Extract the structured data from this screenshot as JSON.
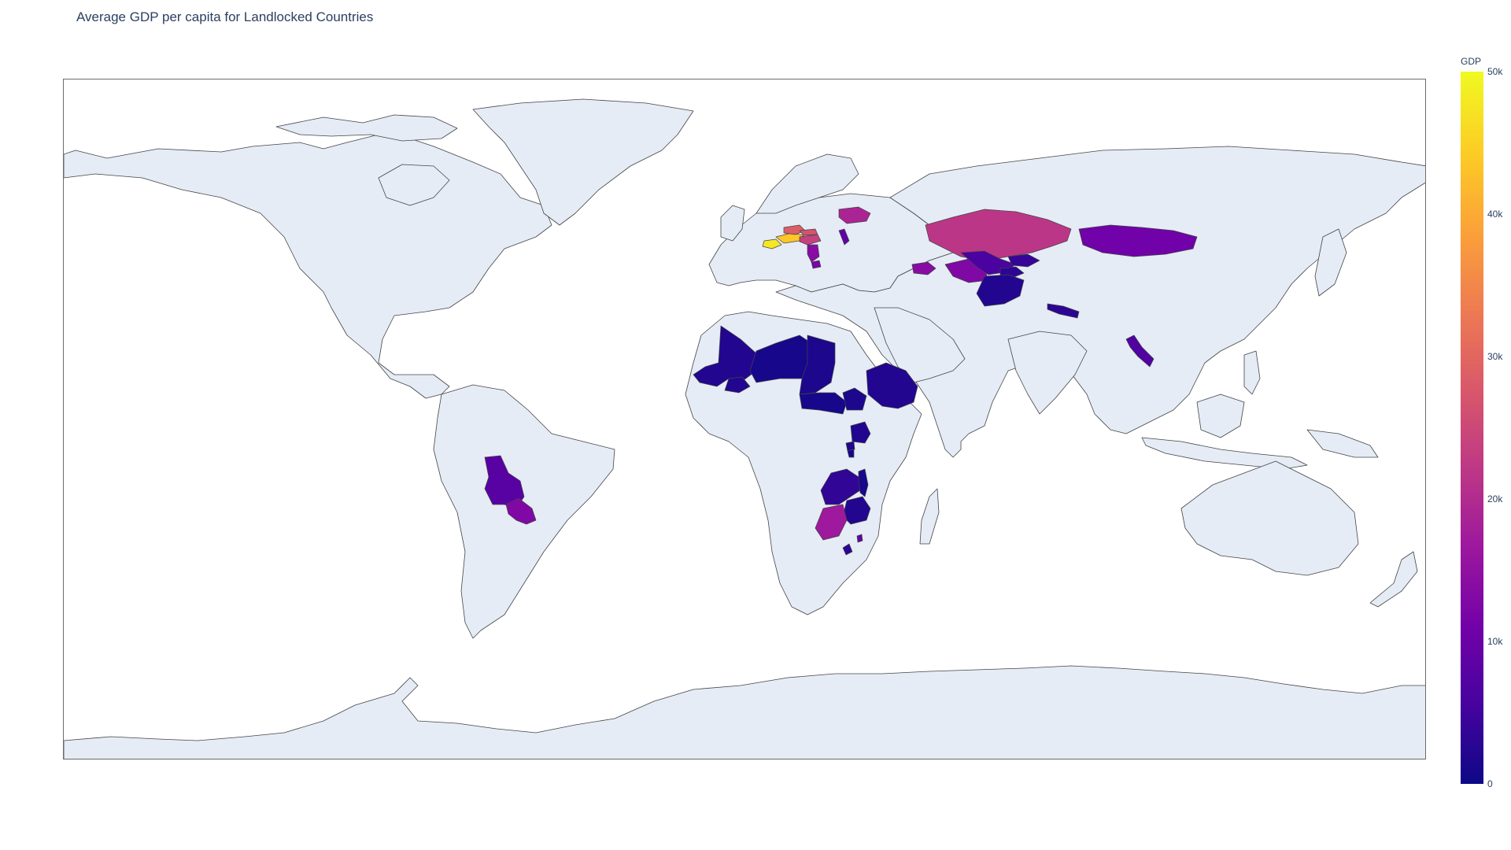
{
  "chart_data": {
    "type": "choropleth",
    "title": "Average GDP per capita for Landlocked Countries",
    "projection": "equirectangular",
    "colorbar": {
      "title": "GDP",
      "range": [
        0,
        50000
      ],
      "ticks": [
        {
          "value": 0,
          "label": "0"
        },
        {
          "value": 10000,
          "label": "10k"
        },
        {
          "value": 20000,
          "label": "20k"
        },
        {
          "value": 30000,
          "label": "30k"
        },
        {
          "value": 40000,
          "label": "40k"
        },
        {
          "value": 50000,
          "label": "50k"
        }
      ],
      "colorscale": [
        "#0d0887",
        "#46039f",
        "#7201a8",
        "#9c179e",
        "#bd3786",
        "#d8576b",
        "#ed7953",
        "#fb9f3a",
        "#fdca26",
        "#f0f921"
      ]
    },
    "countries": [
      {
        "name": "Bolivia",
        "gdp": 8000
      },
      {
        "name": "Paraguay",
        "gdp": 13000
      },
      {
        "name": "Mali",
        "gdp": 2000
      },
      {
        "name": "Burkina Faso",
        "gdp": 2000
      },
      {
        "name": "Niger",
        "gdp": 1000
      },
      {
        "name": "Chad",
        "gdp": 1500
      },
      {
        "name": "Central African Republic",
        "gdp": 1000
      },
      {
        "name": "Ethiopia",
        "gdp": 2000
      },
      {
        "name": "South Sudan",
        "gdp": 1500
      },
      {
        "name": "Uganda",
        "gdp": 2000
      },
      {
        "name": "Rwanda",
        "gdp": 2000
      },
      {
        "name": "Burundi",
        "gdp": 800
      },
      {
        "name": "Zambia",
        "gdp": 3500
      },
      {
        "name": "Malawi",
        "gdp": 1200
      },
      {
        "name": "Zimbabwe",
        "gdp": 2000
      },
      {
        "name": "Botswana",
        "gdp": 17000
      },
      {
        "name": "Lesotho",
        "gdp": 3000
      },
      {
        "name": "Eswatini",
        "gdp": 9000
      },
      {
        "name": "Switzerland",
        "gdp": 48000
      },
      {
        "name": "Austria",
        "gdp": 44000
      },
      {
        "name": "Czechia",
        "gdp": 29000
      },
      {
        "name": "Slovakia",
        "gdp": 27000
      },
      {
        "name": "Hungary",
        "gdp": 24000
      },
      {
        "name": "Serbia",
        "gdp": 14000
      },
      {
        "name": "North Macedonia",
        "gdp": 12000
      },
      {
        "name": "Moldova",
        "gdp": 9000
      },
      {
        "name": "Belarus",
        "gdp": 19000
      },
      {
        "name": "Armenia",
        "gdp": 11000
      },
      {
        "name": "Azerbaijan",
        "gdp": 14000
      },
      {
        "name": "Kazakhstan",
        "gdp": 22000
      },
      {
        "name": "Uzbekistan",
        "gdp": 6000
      },
      {
        "name": "Turkmenistan",
        "gdp": 13000
      },
      {
        "name": "Kyrgyzstan",
        "gdp": 4000
      },
      {
        "name": "Tajikistan",
        "gdp": 3000
      },
      {
        "name": "Afghanistan",
        "gdp": 2000
      },
      {
        "name": "Mongolia",
        "gdp": 11000
      },
      {
        "name": "Nepal",
        "gdp": 3000
      },
      {
        "name": "Laos",
        "gdp": 7000
      }
    ]
  }
}
